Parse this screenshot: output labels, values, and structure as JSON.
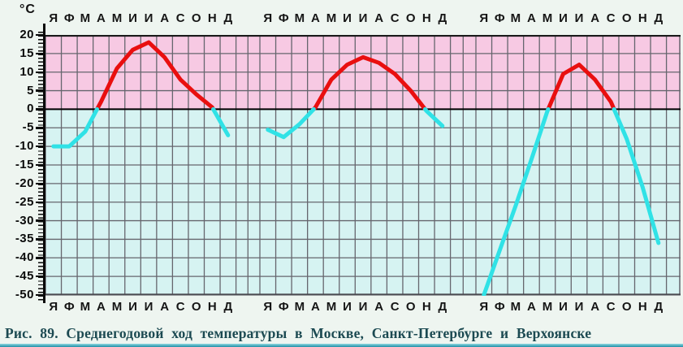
{
  "figure": {
    "unit_label": "°C",
    "caption": "Рис. 89. Среднегодовой ход температуры в Москве, Санкт-Петербурге и Верхоянске"
  },
  "chart_data": {
    "type": "line",
    "title": "Среднегодовой ход температуры в Москве, Санкт-Петербурге и Верхоянске",
    "unit": "°C",
    "categories": [
      "Я",
      "Ф",
      "М",
      "А",
      "М",
      "И",
      "И",
      "А",
      "С",
      "О",
      "Н",
      "Д"
    ],
    "month_label_rows": [
      "top",
      "bottom"
    ],
    "panels": 3,
    "y_ticks": [
      20,
      15,
      10,
      5,
      0,
      -5,
      -10,
      -15,
      -20,
      -25,
      -30,
      -35,
      -40,
      -45,
      -50
    ],
    "y_tick_labels": [
      "20",
      "15",
      "10",
      "5",
      "0",
      "-5",
      "-10",
      "-15",
      "-20",
      "-25",
      "-30",
      "-35",
      "-40",
      "-45",
      "-50"
    ],
    "ylim": [
      -50,
      20
    ],
    "grid": true,
    "legend": "none",
    "series": [
      {
        "name": "Москва",
        "values": [
          -10,
          -10,
          -6,
          2,
          11,
          16,
          18,
          14,
          8,
          4,
          0.5,
          -7
        ]
      },
      {
        "name": "Санкт-Петербург",
        "values": [
          -5.5,
          -7.5,
          -4,
          0.5,
          8,
          12,
          14,
          12.5,
          9.5,
          5,
          -0.5,
          -4.5
        ]
      },
      {
        "name": "Верхоянск",
        "values": [
          -50,
          -38,
          -26,
          -13.5,
          -0.5,
          9.5,
          12,
          8,
          2,
          -8,
          -21,
          -36
        ]
      }
    ],
    "style_note": "curve red above 0°C, cyan below 0°C; band pink above 0°C, light cyan below",
    "colors": {
      "above_zero_bg": "#f7c9e3",
      "below_zero_bg": "#d6f3f2",
      "grid": "#66666e",
      "warm_line": "#e90f0f",
      "cold_line": "#30e2e6",
      "zero_line": "#000000",
      "border_dark": "#1a1a1a",
      "caption_text": "#1c4a52",
      "bottom_rule": "#1f8fa6"
    }
  }
}
